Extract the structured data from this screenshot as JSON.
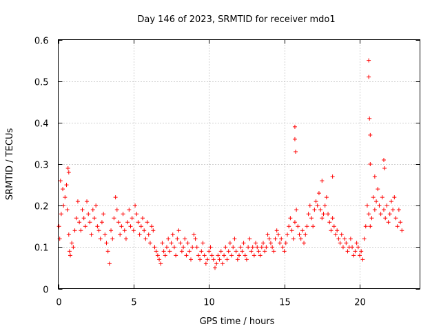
{
  "chart_data": {
    "type": "scatter",
    "title": "Day 146 of 2023, SRMTID for receiver mdo1",
    "xlabel": "GPS time / hours",
    "ylabel": "SRMTID / TECUs",
    "xlim": [
      0,
      24
    ],
    "ylim": [
      0,
      0.6
    ],
    "xticks": [
      0,
      5,
      10,
      15,
      20
    ],
    "xtick_labels": [
      "0",
      "5",
      "10",
      "15",
      "20"
    ],
    "yticks": [
      0,
      0.1,
      0.2,
      0.3,
      0.4,
      0.5,
      0.6
    ],
    "ytick_labels": [
      "0",
      "0.1",
      "0.2",
      "0.3",
      "0.4",
      "0.5",
      "0.6"
    ],
    "grid": true,
    "marker": "plus",
    "series_color": "#ff0000",
    "series": [
      {
        "name": "SRMTID",
        "x": [
          0.05,
          0.1,
          0.2,
          0.3,
          0.35,
          0.45,
          0.55,
          0.6,
          0.7,
          0.75,
          0.8,
          0.9,
          1.0,
          1.1,
          1.2,
          1.3,
          1.4,
          1.5,
          1.6,
          1.7,
          1.8,
          1.9,
          2.0,
          2.1,
          2.2,
          2.3,
          2.4,
          2.5,
          2.6,
          2.7,
          2.8,
          2.9,
          3.0,
          3.1,
          3.2,
          3.3,
          3.4,
          3.5,
          3.6,
          3.7,
          3.8,
          3.9,
          4.0,
          4.1,
          4.2,
          4.3,
          4.4,
          4.5,
          4.6,
          4.7,
          4.8,
          4.9,
          5.0,
          5.1,
          5.2,
          5.3,
          5.4,
          5.5,
          5.6,
          5.7,
          5.8,
          5.9,
          6.0,
          6.1,
          6.2,
          6.3,
          6.4,
          6.5,
          6.6,
          6.7,
          6.8,
          6.9,
          7.0,
          7.1,
          7.2,
          7.3,
          7.4,
          7.5,
          7.6,
          7.7,
          7.8,
          7.9,
          8.0,
          8.1,
          8.2,
          8.3,
          8.4,
          8.5,
          8.6,
          8.7,
          8.8,
          8.9,
          9.0,
          9.1,
          9.2,
          9.3,
          9.4,
          9.5,
          9.6,
          9.7,
          9.8,
          9.9,
          10.0,
          10.1,
          10.2,
          10.3,
          10.4,
          10.5,
          10.6,
          10.7,
          10.8,
          10.9,
          11.0,
          11.1,
          11.2,
          11.3,
          11.4,
          11.5,
          11.6,
          11.7,
          11.8,
          11.9,
          12.0,
          12.1,
          12.2,
          12.3,
          12.4,
          12.5,
          12.6,
          12.7,
          12.8,
          12.9,
          13.0,
          13.1,
          13.2,
          13.3,
          13.4,
          13.5,
          13.6,
          13.7,
          13.8,
          13.9,
          14.0,
          14.1,
          14.2,
          14.3,
          14.4,
          14.5,
          14.6,
          14.7,
          14.8,
          14.9,
          15.0,
          15.1,
          15.2,
          15.3,
          15.4,
          15.5,
          15.6,
          15.7,
          15.8,
          15.9,
          16.0,
          16.1,
          16.2,
          16.3,
          16.4,
          16.5,
          16.6,
          16.7,
          16.8,
          16.9,
          17.0,
          17.1,
          17.2,
          17.3,
          17.4,
          17.5,
          17.6,
          17.7,
          17.8,
          17.9,
          18.0,
          18.1,
          18.2,
          18.3,
          18.4,
          18.5,
          18.6,
          18.7,
          18.8,
          18.9,
          19.0,
          19.1,
          19.2,
          19.3,
          19.4,
          19.5,
          19.6,
          19.7,
          19.8,
          19.9,
          20.0,
          20.1,
          20.2,
          20.3,
          20.4,
          20.5,
          20.6,
          20.7,
          20.8,
          20.9,
          21.0,
          21.1,
          21.2,
          21.3,
          21.4,
          21.5,
          21.6,
          21.7,
          21.8,
          21.9,
          22.0,
          22.1,
          22.2,
          22.3,
          22.4,
          22.5,
          22.6,
          22.7,
          22.8,
          0.15,
          0.65,
          15.7,
          15.7,
          15.75,
          20.6,
          20.6,
          20.65,
          20.7,
          20.7,
          21.6,
          21.65,
          0.7,
          21.0,
          17.5,
          18.2
        ],
        "y": [
          0.15,
          0.12,
          0.18,
          0.24,
          0.2,
          0.22,
          0.25,
          0.19,
          0.13,
          0.09,
          0.08,
          0.11,
          0.1,
          0.14,
          0.17,
          0.21,
          0.16,
          0.14,
          0.19,
          0.17,
          0.15,
          0.21,
          0.18,
          0.16,
          0.13,
          0.19,
          0.17,
          0.2,
          0.15,
          0.14,
          0.12,
          0.16,
          0.18,
          0.13,
          0.11,
          0.09,
          0.06,
          0.14,
          0.12,
          0.17,
          0.22,
          0.19,
          0.16,
          0.13,
          0.15,
          0.18,
          0.14,
          0.12,
          0.16,
          0.19,
          0.15,
          0.17,
          0.14,
          0.2,
          0.18,
          0.16,
          0.13,
          0.15,
          0.17,
          0.14,
          0.12,
          0.16,
          0.13,
          0.11,
          0.15,
          0.14,
          0.1,
          0.09,
          0.08,
          0.07,
          0.06,
          0.11,
          0.09,
          0.08,
          0.1,
          0.12,
          0.09,
          0.11,
          0.13,
          0.1,
          0.08,
          0.12,
          0.14,
          0.11,
          0.09,
          0.1,
          0.12,
          0.08,
          0.11,
          0.09,
          0.07,
          0.1,
          0.13,
          0.12,
          0.1,
          0.08,
          0.07,
          0.09,
          0.11,
          0.08,
          0.06,
          0.07,
          0.09,
          0.1,
          0.08,
          0.07,
          0.05,
          0.06,
          0.08,
          0.07,
          0.09,
          0.06,
          0.08,
          0.1,
          0.07,
          0.09,
          0.11,
          0.08,
          0.1,
          0.12,
          0.09,
          0.07,
          0.08,
          0.1,
          0.09,
          0.11,
          0.08,
          0.07,
          0.1,
          0.12,
          0.09,
          0.1,
          0.08,
          0.11,
          0.1,
          0.09,
          0.08,
          0.1,
          0.11,
          0.09,
          0.1,
          0.13,
          0.12,
          0.11,
          0.1,
          0.09,
          0.12,
          0.14,
          0.13,
          0.11,
          0.12,
          0.1,
          0.09,
          0.11,
          0.13,
          0.15,
          0.17,
          0.14,
          0.12,
          0.16,
          0.19,
          0.15,
          0.13,
          0.12,
          0.14,
          0.11,
          0.13,
          0.15,
          0.18,
          0.2,
          0.17,
          0.15,
          0.19,
          0.21,
          0.2,
          0.23,
          0.19,
          0.17,
          0.18,
          0.2,
          0.22,
          0.18,
          0.16,
          0.14,
          0.17,
          0.15,
          0.13,
          0.14,
          0.12,
          0.11,
          0.13,
          0.1,
          0.12,
          0.11,
          0.09,
          0.1,
          0.12,
          0.1,
          0.08,
          0.09,
          0.11,
          0.1,
          0.08,
          0.09,
          0.07,
          0.12,
          0.15,
          0.2,
          0.18,
          0.15,
          0.17,
          0.22,
          0.19,
          0.21,
          0.24,
          0.2,
          0.18,
          0.22,
          0.19,
          0.17,
          0.2,
          0.16,
          0.18,
          0.21,
          0.19,
          0.22,
          0.17,
          0.15,
          0.19,
          0.16,
          0.14,
          0.26,
          0.29,
          0.39,
          0.36,
          0.33,
          0.55,
          0.51,
          0.41,
          0.37,
          0.3,
          0.31,
          0.29,
          0.28,
          0.27,
          0.26,
          0.27
        ]
      }
    ]
  }
}
